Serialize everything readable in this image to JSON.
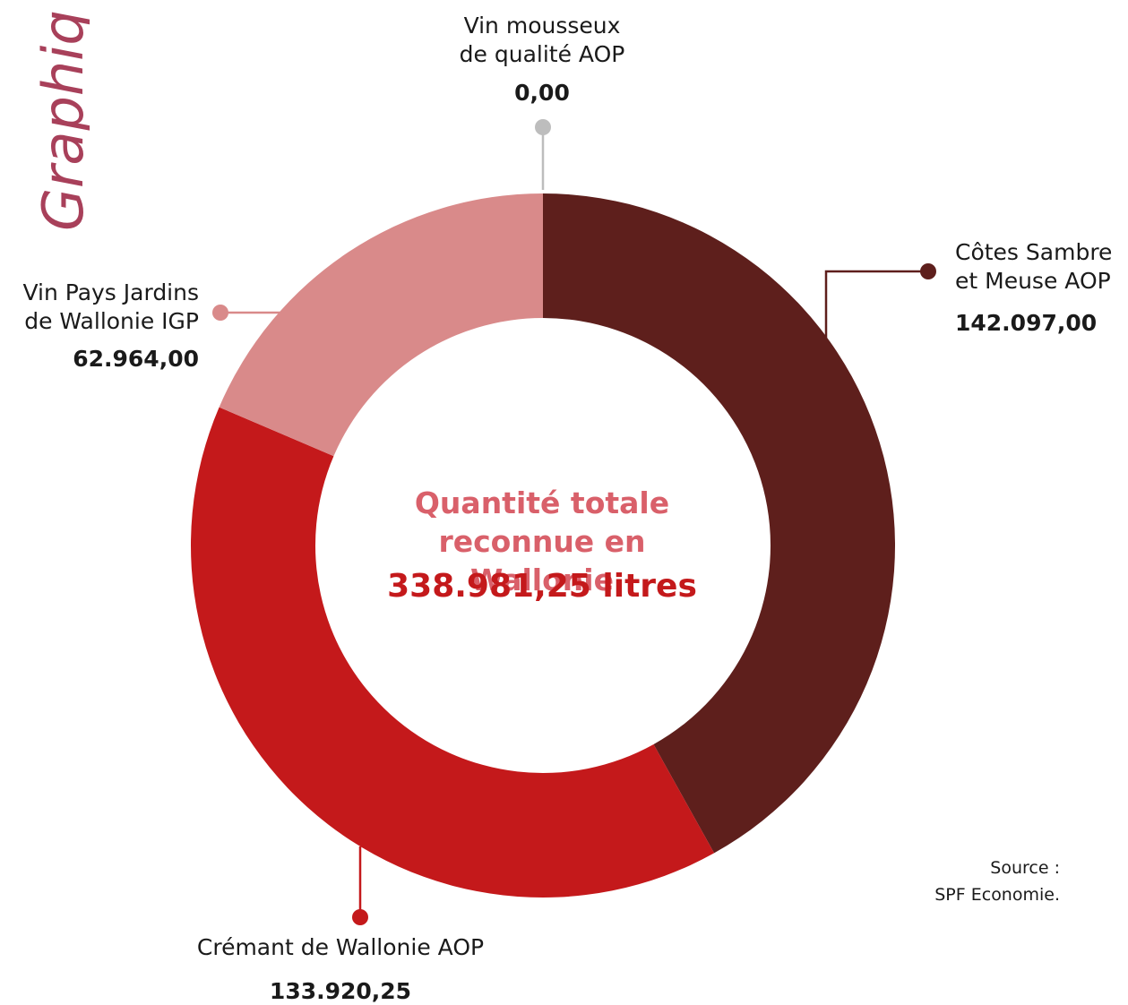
{
  "page": {
    "title_fragment": "Graphiq"
  },
  "chart_data": {
    "type": "pie",
    "variant": "donut",
    "center": {
      "line1": "Quantité totale",
      "line2": "reconnue en Wallonie",
      "total": "338.981,25 litres",
      "total_value": 338981.25
    },
    "slices": [
      {
        "line1": "Côtes Sambre",
        "line2": "et Meuse AOP",
        "value": 142097.0,
        "value_label": "142.097,00",
        "color": "#5e1f1c"
      },
      {
        "line1": "Crémant de Wallonie AOP",
        "line2": "",
        "value": 133920.25,
        "value_label": "133.920,25",
        "color": "#c4191b"
      },
      {
        "line1": "Vin Pays Jardins",
        "line2": "de Wallonie IGP",
        "value": 62964.0,
        "value_label": "62.964,00",
        "color": "#d98a8a"
      },
      {
        "line1": "Vin mousseux",
        "line2": "de qualité AOP",
        "value": 0.0,
        "value_label": "0,00",
        "color": "#bdbdbd"
      }
    ],
    "colors": {
      "title": "#a8405a",
      "center_heading": "#d9606a",
      "center_total": "#c4191b"
    }
  },
  "source": {
    "line1": "Source :",
    "line2": "SPF Economie."
  }
}
